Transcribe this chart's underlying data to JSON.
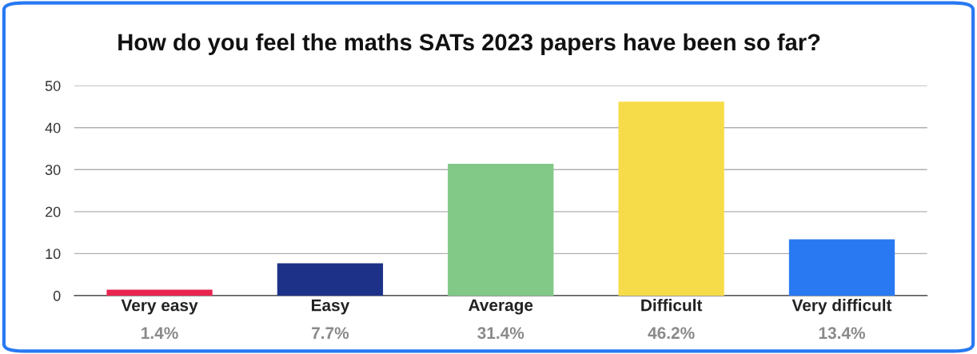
{
  "chart_data": {
    "type": "bar",
    "title": "How do you feel the maths SATs 2023 papers have been so far?",
    "categories": [
      "Very easy",
      "Easy",
      "Average",
      "Difficult",
      "Very difficult"
    ],
    "values": [
      1.4,
      7.7,
      31.4,
      46.2,
      13.4
    ],
    "colors": [
      "#e8254f",
      "#1c3187",
      "#82c886",
      "#f7dc4a",
      "#2879f2"
    ],
    "value_labels": [
      "1.4%",
      "7.7%",
      "31.4%",
      "46.2%",
      "13.4%"
    ],
    "ylim": [
      0,
      50
    ],
    "yticks": [
      0,
      10,
      20,
      30,
      40,
      50
    ],
    "grid": "y"
  }
}
